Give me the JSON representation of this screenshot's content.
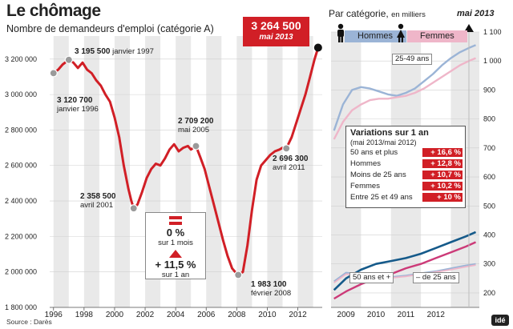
{
  "title": "Le chômage",
  "subtitle": "Nombre de demandeurs d'emploi (catégorie A)",
  "source": "Source : Darès",
  "logo": "idé",
  "colors": {
    "red": "#d11f26",
    "blue": "#155a8a",
    "lightblue": "#9bb4d6",
    "pink": "#efb6c9",
    "darkpink": "#cc3a78",
    "marker": "#999999"
  },
  "latest": {
    "value": "3 264 500",
    "date": "mai 2013"
  },
  "change_box": {
    "month_value": "0 %",
    "month_label": "sur 1 mois",
    "year_value": "+ 11,5 %",
    "year_label": "sur 1 an"
  },
  "callouts": [
    {
      "value": "3 195 500",
      "date": "janvier 1997"
    },
    {
      "value": "3 120 700",
      "date": "janvier 1996"
    },
    {
      "value": "2 358 500",
      "date": "avril 2001"
    },
    {
      "value": "2 709 200",
      "date": "mai 2005"
    },
    {
      "value": "2 696 300",
      "date": "avril 2011"
    },
    {
      "value": "1 983 100",
      "date": "février 2008"
    }
  ],
  "right_panel": {
    "title": "Par catégorie,",
    "title_unit": "en milliers",
    "date": "mai 2013",
    "men_label": "Hommes",
    "women_label": "Femmes",
    "label_25_49": "25-49 ans",
    "label_50": "50 ans et +",
    "label_under25": "– de 25 ans",
    "variations": {
      "title": "Variations sur 1 an",
      "subtitle": "(mai 2013/mai 2012)",
      "rows": [
        {
          "label": "50 ans et plus",
          "value": "+ 16,6 %"
        },
        {
          "label": "Hommes",
          "value": "+ 12,8 %"
        },
        {
          "label": "Moins de 25 ans",
          "value": "+ 10,7 %"
        },
        {
          "label": "Femmes",
          "value": "+ 10,2 %"
        },
        {
          "label": "Entre 25 et 49 ans",
          "value": "+ 10 %"
        }
      ]
    }
  },
  "chart_data": [
    {
      "type": "line",
      "title": "Le chômage",
      "subtitle": "Nombre de demandeurs d'emploi (catégorie A)",
      "x_ticks": [
        "1996",
        "1998",
        "2000",
        "2002",
        "2004",
        "2006",
        "2008",
        "2010",
        "2012"
      ],
      "y_ticks": [
        "1 800 000",
        "2 000 000",
        "2 200 000",
        "2 400 000",
        "2 600 000",
        "2 800 000",
        "3 000 000",
        "3 200 000"
      ],
      "xlim": [
        1995.75,
        2013.6
      ],
      "ylim": [
        1800000,
        3330000
      ],
      "series": [
        {
          "x": [
            1996.0,
            1996.3,
            1996.6,
            1997.0,
            1997.3,
            1997.6,
            1997.9,
            1998.2,
            1998.5,
            1998.8,
            1999.1,
            1999.4,
            1999.7,
            2000.0,
            2000.3,
            2000.6,
            2000.9,
            2001.1,
            2001.25,
            2001.5,
            2001.8,
            2002.1,
            2002.4,
            2002.7,
            2003.0,
            2003.3,
            2003.6,
            2003.9,
            2004.2,
            2004.5,
            2004.8,
            2005.0,
            2005.33,
            2005.6,
            2005.9,
            2006.2,
            2006.5,
            2006.8,
            2007.1,
            2007.4,
            2007.7,
            2008.0,
            2008.1,
            2008.4,
            2008.7,
            2009.0,
            2009.3,
            2009.6,
            2009.9,
            2010.2,
            2010.5,
            2010.8,
            2011.0,
            2011.25,
            2011.6,
            2011.9,
            2012.2,
            2012.5,
            2012.8,
            2013.1,
            2013.33
          ],
          "y": [
            3120700,
            3140000,
            3170000,
            3195500,
            3180000,
            3150000,
            3180000,
            3140000,
            3120000,
            3080000,
            3050000,
            3000000,
            2960000,
            2870000,
            2760000,
            2600000,
            2470000,
            2400000,
            2358500,
            2380000,
            2450000,
            2530000,
            2580000,
            2610000,
            2600000,
            2640000,
            2690000,
            2720000,
            2680000,
            2700000,
            2710000,
            2690000,
            2709200,
            2650000,
            2580000,
            2480000,
            2380000,
            2280000,
            2180000,
            2090000,
            2020000,
            1990000,
            1983100,
            2000000,
            2150000,
            2350000,
            2520000,
            2600000,
            2630000,
            2660000,
            2680000,
            2690000,
            2700000,
            2696300,
            2760000,
            2840000,
            2920000,
            3000000,
            3100000,
            3200000,
            3264500
          ]
        }
      ]
    },
    {
      "type": "line",
      "title": "Par catégorie, en milliers",
      "x_ticks": [
        "2009",
        "2010",
        "2011",
        "2012"
      ],
      "y_ticks": [
        "200",
        "300",
        "400",
        "500",
        "600",
        "700",
        "800",
        "900",
        "1 000",
        "1 100"
      ],
      "xlim": [
        2008.5,
        2013.45
      ],
      "ylim": [
        150,
        1100
      ],
      "series": [
        {
          "name": "Hommes",
          "x": [
            2008.6,
            2008.9,
            2009.2,
            2009.5,
            2009.8,
            2010.1,
            2010.4,
            2010.7,
            2011.0,
            2011.3,
            2011.6,
            2011.9,
            2012.2,
            2012.5,
            2012.8,
            2013.1,
            2013.33
          ],
          "y": [
            760,
            850,
            900,
            910,
            905,
            895,
            885,
            880,
            890,
            905,
            930,
            955,
            985,
            1010,
            1030,
            1045,
            1055
          ]
        },
        {
          "name": "Femmes",
          "x": [
            2008.6,
            2008.9,
            2009.2,
            2009.5,
            2009.8,
            2010.1,
            2010.4,
            2010.7,
            2011.0,
            2011.3,
            2011.6,
            2011.9,
            2012.2,
            2012.5,
            2012.8,
            2013.1,
            2013.33
          ],
          "y": [
            730,
            790,
            830,
            850,
            865,
            870,
            870,
            875,
            880,
            890,
            905,
            925,
            945,
            965,
            985,
            1000,
            1010
          ]
        },
        {
          "name": "25-49 ans",
          "x": [
            2008.6,
            2009.0,
            2009.5,
            2010.0,
            2010.5,
            2011.0,
            2011.5,
            2012.0,
            2012.5,
            2013.0,
            2013.33
          ],
          "y": [
            210,
            250,
            280,
            300,
            310,
            320,
            335,
            355,
            375,
            395,
            410
          ]
        },
        {
          "name": "50 ans et +",
          "x": [
            2008.6,
            2009.0,
            2009.5,
            2010.0,
            2010.5,
            2011.0,
            2011.5,
            2012.0,
            2012.5,
            2013.0,
            2013.33
          ],
          "y": [
            180,
            205,
            230,
            250,
            265,
            285,
            300,
            320,
            340,
            360,
            375
          ]
        },
        {
          "name": "– de 25 ans",
          "x": [
            2008.6,
            2009.0,
            2009.5,
            2010.0,
            2010.5,
            2011.0,
            2011.5,
            2012.0,
            2012.5,
            2013.0,
            2013.33
          ],
          "y": [
            240,
            270,
            265,
            260,
            255,
            260,
            268,
            275,
            285,
            295,
            300
          ]
        },
        {
          "x": [
            2008.6,
            2009.0,
            2009.5,
            2010.0,
            2010.5,
            2011.0,
            2011.5,
            2012.0,
            2012.5,
            2013.0,
            2013.33
          ],
          "y": [
            235,
            265,
            262,
            257,
            252,
            257,
            265,
            272,
            280,
            290,
            296
          ]
        }
      ]
    }
  ]
}
